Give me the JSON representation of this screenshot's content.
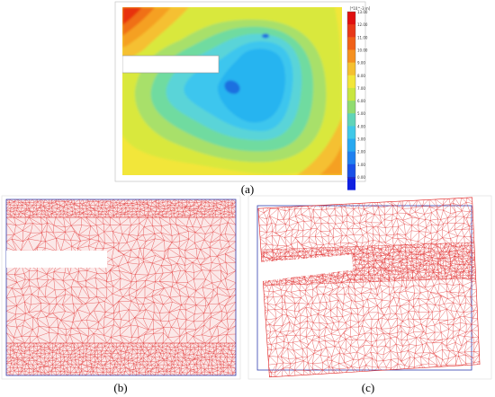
{
  "figure": {
    "colorbar": {
      "unit": "[*10^-3 m]",
      "labels": [
        "13.00",
        "12.00",
        "11.00",
        "10.00",
        "9.00",
        "8.00",
        "7.00",
        "6.00",
        "5.00",
        "4.00",
        "3.00",
        "2.00",
        "1.00",
        "0.00"
      ]
    },
    "captions": [
      "(a)",
      "(b)",
      "(c)"
    ]
  }
}
